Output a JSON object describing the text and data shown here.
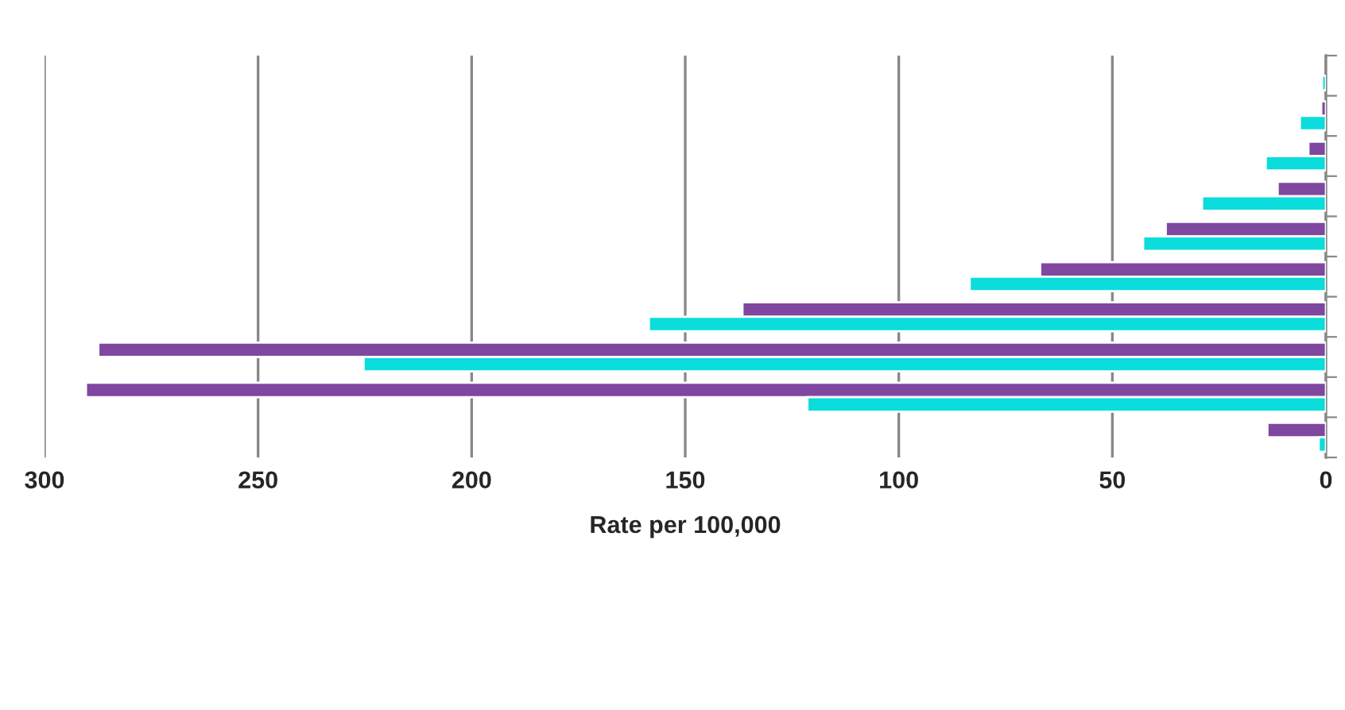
{
  "chart_data": {
    "type": "bar",
    "orientation": "horizontal",
    "xlabel": "Rate per 100,000",
    "categories": [
      null,
      null,
      null,
      null,
      null,
      null,
      null,
      null,
      null,
      null
    ],
    "series": [
      {
        "color": "#7f47a0",
        "values": [
          null,
          1.1,
          4.1,
          11.3,
          37.5,
          66.9,
          136.6,
          287.4,
          290.3,
          13.7
        ]
      },
      {
        "color": "#0bdcdc",
        "values": [
          0.9,
          6.1,
          14.1,
          29.0,
          42.8,
          83.4,
          158.5,
          225.3,
          121.4,
          1.7
        ]
      }
    ],
    "xlim": [
      300,
      0
    ],
    "xticks": [
      300,
      250,
      200,
      150,
      100,
      50,
      0
    ],
    "grid": "x",
    "tick_labels": "x",
    "legend": false
  }
}
